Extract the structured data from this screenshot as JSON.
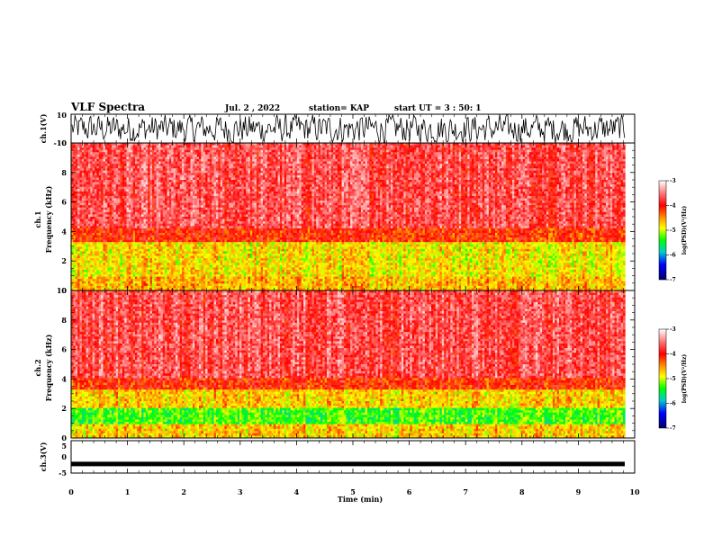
{
  "header": {
    "title": "VLF Spectra",
    "date": "Jul. 2 , 2022",
    "station": "station= KAP",
    "start": "start UT = 3 : 50: 1"
  },
  "chart_data": [
    {
      "type": "line",
      "name": "ch1-waveform",
      "ylabel": "ch.1(V)",
      "xlim": [
        0,
        10
      ],
      "ylim": [
        -10,
        10
      ],
      "ytick_labels": [
        "10",
        "-10"
      ],
      "data_extent_min": 9.83,
      "amplitude_range": [
        -10,
        10
      ]
    },
    {
      "type": "heatmap",
      "name": "ch1-spectrogram",
      "ylabel": "ch.1\nFrequency (kHz)",
      "xlim": [
        0,
        10
      ],
      "ylim": [
        0,
        10
      ],
      "y_ticks": [
        0,
        2,
        4,
        6,
        8,
        10
      ],
      "colorbar": {
        "label": "log(PSD)(V²/Hz)",
        "range": [
          -7,
          -3
        ],
        "ticks": [
          "-3",
          "-4",
          "-5",
          "-6",
          "-7"
        ]
      },
      "bands": [
        {
          "f_range": [
            0,
            0.9
          ],
          "level": -4.6
        },
        {
          "f_range": [
            0.9,
            3.3
          ],
          "level": -4.8
        },
        {
          "f_range": [
            3.3,
            4.2
          ],
          "level": -4.1
        },
        {
          "f_range": [
            4.2,
            10
          ],
          "level": -3.7
        }
      ]
    },
    {
      "type": "heatmap",
      "name": "ch2-spectrogram",
      "ylabel": "ch.2\nFrequency (kHz)",
      "xlim": [
        0,
        10
      ],
      "ylim": [
        0,
        10
      ],
      "y_ticks": [
        0,
        2,
        4,
        6,
        8,
        10
      ],
      "colorbar": {
        "label": "log(PSD)(V²/Hz)",
        "range": [
          -7,
          -3
        ],
        "ticks": [
          "-3",
          "-4",
          "-5",
          "-6",
          "-7"
        ]
      },
      "bands": [
        {
          "f_range": [
            0,
            0.9
          ],
          "level": -4.7
        },
        {
          "f_range": [
            0.9,
            2.0
          ],
          "level": -5.3
        },
        {
          "f_range": [
            2.0,
            3.3
          ],
          "level": -4.7
        },
        {
          "f_range": [
            3.3,
            4.0
          ],
          "level": -4.1
        },
        {
          "f_range": [
            4.0,
            10
          ],
          "level": -3.7
        }
      ]
    },
    {
      "type": "line",
      "name": "ch3-waveform",
      "ylabel": "ch.3(V)",
      "xlim": [
        0,
        10
      ],
      "ylim": [
        -5,
        5
      ],
      "ytick_labels": [
        "5",
        "0",
        "-5"
      ],
      "baseline": -2.2,
      "amplitude": 0.7
    }
  ],
  "x_axis": {
    "label": "Time (min)",
    "ticks": [
      "0",
      "1",
      "2",
      "3",
      "4",
      "5",
      "6",
      "7",
      "8",
      "9",
      "10"
    ]
  },
  "freq_tick_labels": [
    "0",
    "2",
    "4",
    "6",
    "8",
    "10"
  ],
  "colors": {
    "trace": "#000000",
    "low": "#0000ff",
    "mid": "#00ff00",
    "high": "#ff0000",
    "bg": "#ffffff"
  }
}
